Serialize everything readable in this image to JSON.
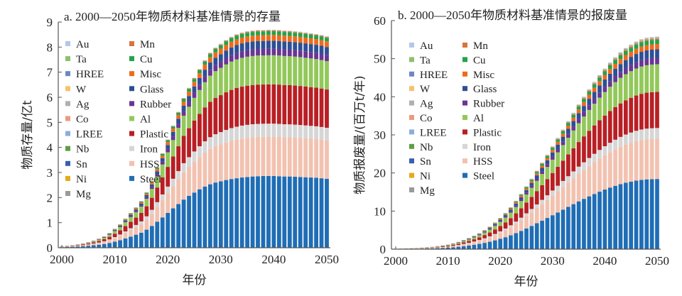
{
  "figure": {
    "series_order_bottom_to_top": [
      "Steel",
      "HSS",
      "Iron",
      "Plastic",
      "Al",
      "Rubber",
      "Glass",
      "Misc",
      "Cu",
      "Mn",
      "Mg",
      "Ni",
      "Sn",
      "Nb",
      "LREE",
      "Co",
      "Ag",
      "W",
      "HREE",
      "Ta",
      "Au"
    ],
    "colors": {
      "Au": "#b4c7e7",
      "Ta": "#8fbf6a",
      "HREE": "#6f86c4",
      "W": "#f5c26b",
      "Ag": "#b0b0b0",
      "Co": "#ec9a7d",
      "LREE": "#8aaedc",
      "Nb": "#5e9e45",
      "Sn": "#3a5fb0",
      "Ni": "#e6aa1a",
      "Mg": "#9a9a9a",
      "Mn": "#d9743a",
      "Cu": "#22a34a",
      "Misc": "#ee6b1e",
      "Glass": "#2d4f94",
      "Rubber": "#6a3594",
      "Al": "#92c85a",
      "Plastic": "#b81f24",
      "Iron": "#d6d6d6",
      "HSS": "#f2c2b0",
      "Steel": "#1f6db5"
    },
    "legend_col1": [
      "Au",
      "Ta",
      "HREE",
      "W",
      "Ag",
      "Co",
      "LREE",
      "Nb",
      "Sn",
      "Ni",
      "Mg"
    ],
    "legend_col2": [
      "Mn",
      "Cu",
      "Misc",
      "Glass",
      "Rubber",
      "Al",
      "Plastic",
      "Iron",
      "HSS",
      "Steel"
    ]
  },
  "chart_data": [
    {
      "type": "bar",
      "stacked": true,
      "title": "a. 2000—2050年物质材料基准情景的存量",
      "xlabel": "年份",
      "ylabel": "物质存量/亿t",
      "ylim": [
        0,
        9
      ],
      "yticks": [
        "0",
        "1",
        "2",
        "3",
        "4",
        "5",
        "6",
        "7",
        "8",
        "9"
      ],
      "xlim": [
        2000,
        2050
      ],
      "xticks": [
        "2000",
        "2010",
        "2020",
        "2030",
        "2040",
        "2050"
      ],
      "legend": "upper-left",
      "years_start": 2000,
      "totals": [
        0.05,
        0.08,
        0.1,
        0.13,
        0.17,
        0.22,
        0.28,
        0.36,
        0.45,
        0.58,
        0.75,
        0.93,
        1.15,
        1.38,
        1.6,
        1.85,
        2.2,
        2.65,
        3.2,
        3.75,
        4.3,
        4.85,
        5.4,
        5.95,
        6.35,
        6.75,
        7.1,
        7.45,
        7.75,
        7.95,
        8.1,
        8.25,
        8.38,
        8.48,
        8.55,
        8.6,
        8.63,
        8.65,
        8.65,
        8.66,
        8.66,
        8.65,
        8.63,
        8.62,
        8.6,
        8.58,
        8.55,
        8.52,
        8.49,
        8.45,
        8.4
      ],
      "steel": [
        0.02,
        0.03,
        0.04,
        0.05,
        0.06,
        0.08,
        0.1,
        0.12,
        0.15,
        0.19,
        0.24,
        0.3,
        0.37,
        0.44,
        0.52,
        0.6,
        0.72,
        0.87,
        1.04,
        1.21,
        1.39,
        1.57,
        1.74,
        1.92,
        2.07,
        2.2,
        2.33,
        2.44,
        2.53,
        2.6,
        2.65,
        2.7,
        2.74,
        2.77,
        2.8,
        2.82,
        2.84,
        2.85,
        2.86,
        2.86,
        2.86,
        2.85,
        2.84,
        2.84,
        2.83,
        2.82,
        2.81,
        2.8,
        2.79,
        2.77,
        2.75
      ],
      "non_steel_shares": {
        "HSS": 0.27,
        "Iron": 0.09,
        "Plastic": 0.27,
        "Al": 0.2,
        "Rubber": 0.045,
        "Glass": 0.055,
        "Misc": 0.04,
        "Cu": 0.025,
        "Mn": 0.005,
        "Mg": 0.0005,
        "Ni": 0.0005,
        "Sn": 0.0005,
        "Nb": 0.0005,
        "LREE": 0.0005,
        "Co": 0.0005,
        "Ag": 0.0005,
        "W": 0.0005,
        "HREE": 0.0005,
        "Ta": 0.0005,
        "Au": 0.0005
      }
    },
    {
      "type": "bar",
      "stacked": true,
      "title": "b. 2000—2050年物质材料基准情景的报废量",
      "xlabel": "年份",
      "ylabel": "物质报废量/(百万t/年)",
      "ylim": [
        0,
        60
      ],
      "yticks": [
        "0",
        "10",
        "20",
        "30",
        "40",
        "50",
        "60"
      ],
      "xlim": [
        2000,
        2050
      ],
      "xticks": [
        "2000",
        "2010",
        "2020",
        "2030",
        "2040",
        "2050"
      ],
      "legend": "upper-left",
      "years_start": 2000,
      "totals": [
        0.1,
        0.15,
        0.2,
        0.25,
        0.3,
        0.4,
        0.5,
        0.6,
        0.8,
        1.0,
        1.2,
        1.5,
        1.9,
        2.4,
        2.9,
        3.5,
        4.2,
        5.0,
        5.9,
        7.0,
        8.2,
        9.5,
        11.0,
        12.7,
        14.5,
        16.5,
        18.5,
        20.6,
        22.7,
        24.8,
        27.0,
        29.2,
        31.4,
        33.6,
        35.8,
        38.0,
        40.0,
        42.0,
        43.9,
        45.7,
        47.4,
        49.0,
        50.4,
        51.7,
        52.8,
        53.7,
        54.5,
        55.1,
        55.5,
        55.7,
        55.8
      ],
      "shares": {
        "Steel": 0.33,
        "HSS": 0.19,
        "Iron": 0.05,
        "Plastic": 0.17,
        "Al": 0.13,
        "Rubber": 0.03,
        "Glass": 0.04,
        "Misc": 0.025,
        "Cu": 0.02,
        "Mn": 0.005,
        "Mg": 0.001,
        "Ni": 0.001,
        "Sn": 0.001,
        "Nb": 0.001,
        "LREE": 0.001,
        "Co": 0.001,
        "Ag": 0.001,
        "W": 0.001,
        "HREE": 0.001,
        "Ta": 0.0005,
        "Au": 0.0005
      }
    }
  ]
}
